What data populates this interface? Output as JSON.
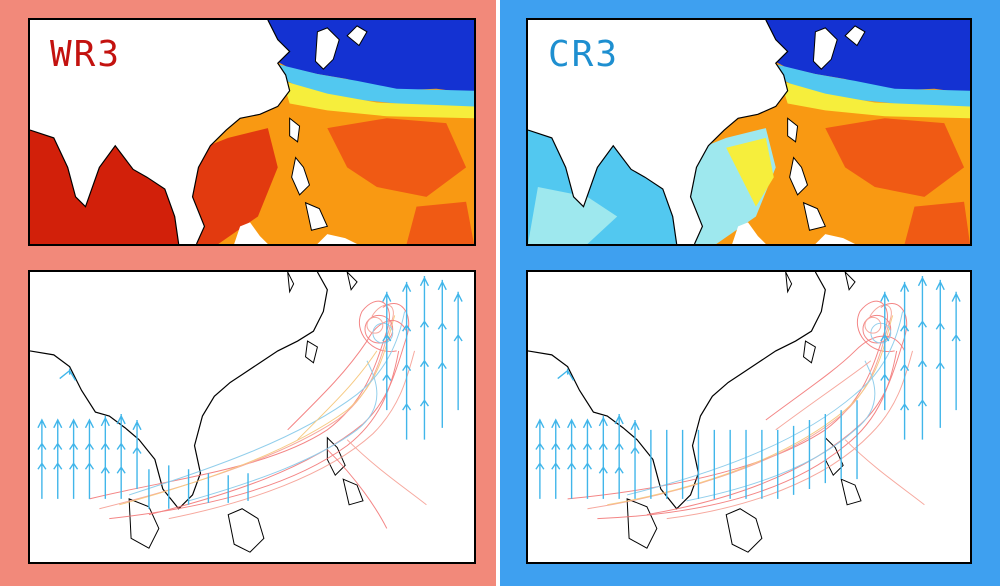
{
  "panels": {
    "warm": {
      "label": "WR3",
      "label_color": "#c3120f",
      "frame_color": "#f2897a"
    },
    "cold": {
      "label": "CR3",
      "label_color": "#1e8fd0",
      "frame_color": "#3ea0f0"
    }
  },
  "colors": {
    "sst_scale": [
      "#1432d2",
      "#2a8cf0",
      "#52c8f0",
      "#9ee8ee",
      "#f6ee3c",
      "#fbb40f",
      "#f99912",
      "#f05a14",
      "#d2200a"
    ],
    "track_colors": [
      "#f27070",
      "#f59a8e",
      "#f5c16e",
      "#7fc6e8"
    ],
    "wind_arrow": "#41b6ea",
    "coastline": "#000000"
  },
  "icons": {
    "wind_arrows": "wind-vector-icon",
    "typhoon_tracks": "storm-track-icon"
  }
}
